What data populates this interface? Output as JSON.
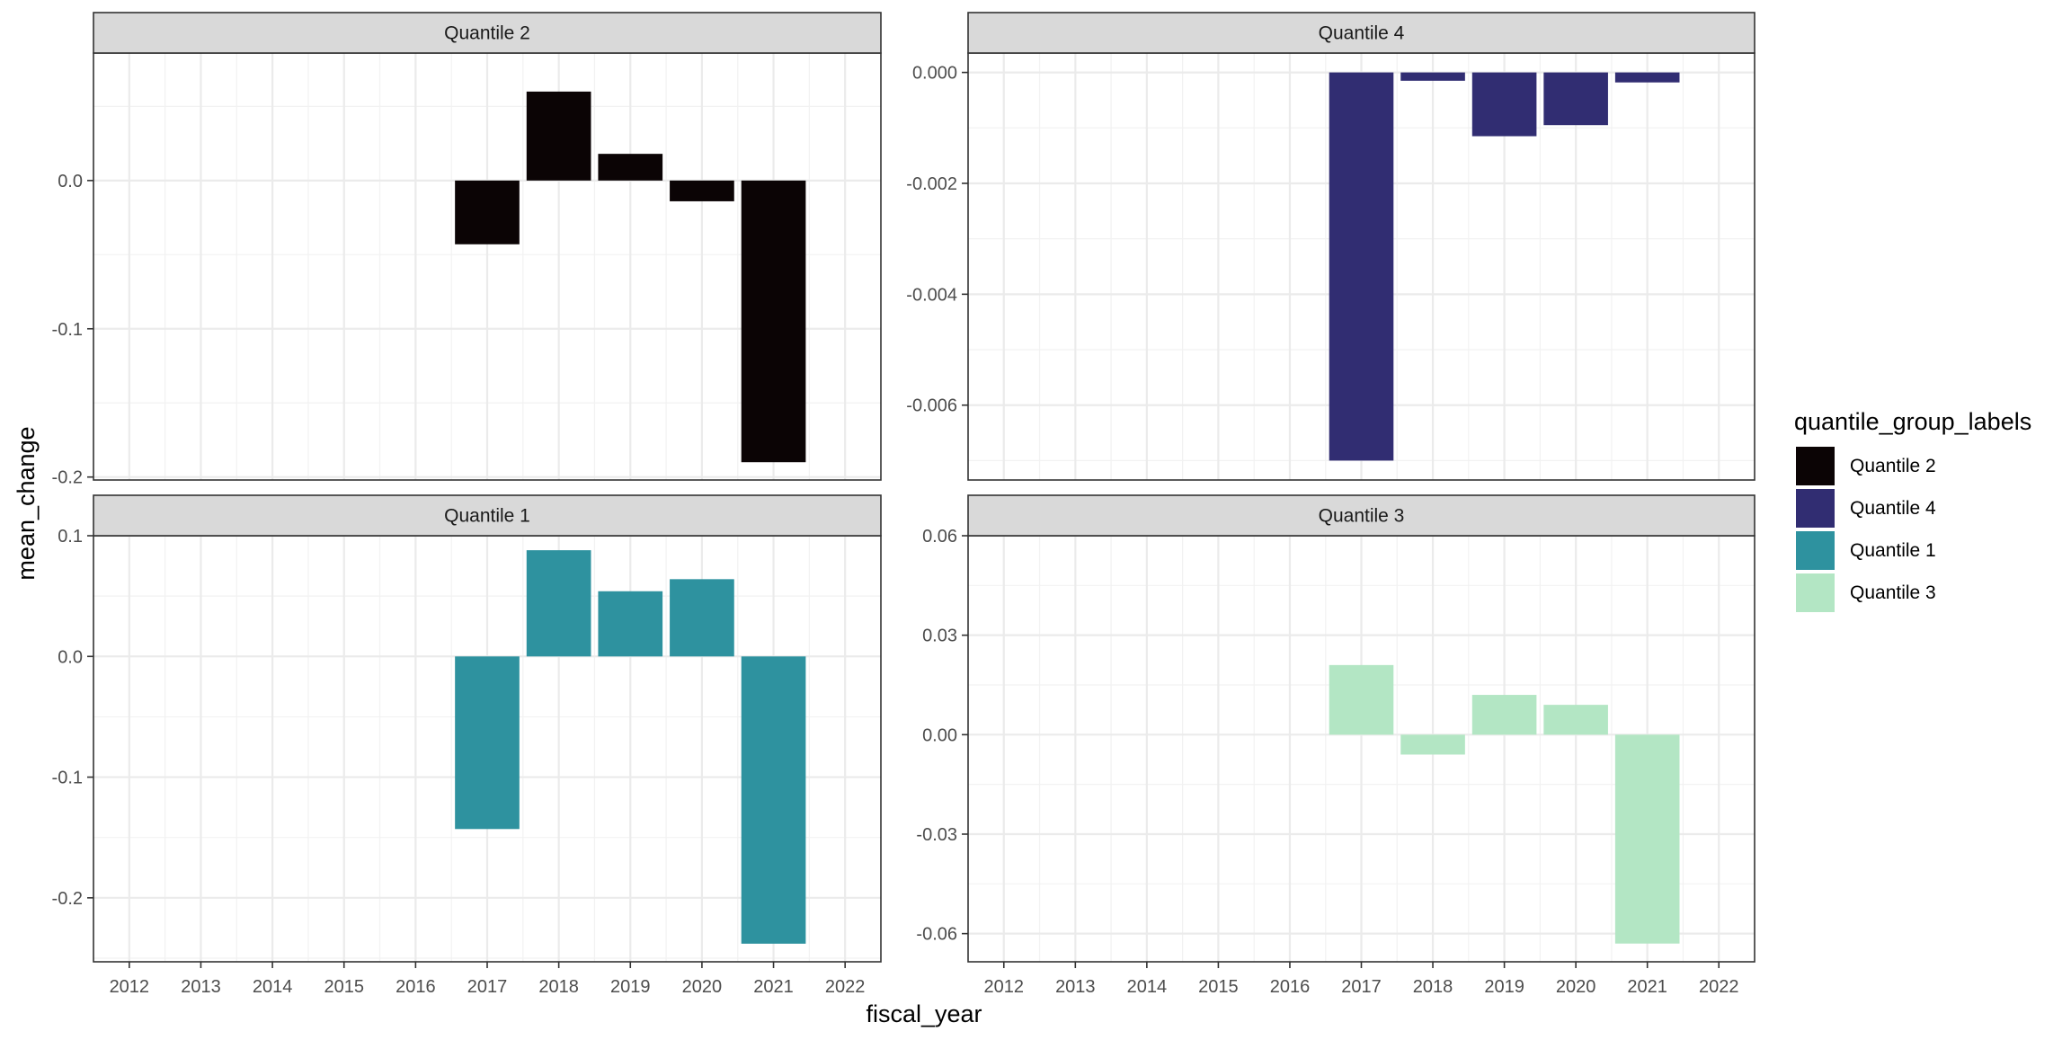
{
  "chart_data": {
    "type": "bar",
    "facet_wrap": true,
    "xlabel": "fiscal_year",
    "ylabel": "mean_change",
    "x_ticks": [
      "2012",
      "2013",
      "2014",
      "2015",
      "2016",
      "2017",
      "2018",
      "2019",
      "2020",
      "2021",
      "2022"
    ],
    "grid": true,
    "scales": "free_y",
    "legend": {
      "title": "quantile_group_labels",
      "position": "right",
      "entries": [
        {
          "label": "Quantile 2",
          "color": "#0b0405"
        },
        {
          "label": "Quantile 4",
          "color": "#312d72"
        },
        {
          "label": "Quantile 1",
          "color": "#2e929f"
        },
        {
          "label": "Quantile 3",
          "color": "#b3e6c4"
        }
      ]
    },
    "panels": [
      {
        "strip": "Quantile 2",
        "color": "#0b0405",
        "ylim": [
          -0.202,
          0.086
        ],
        "y_ticks": [
          0.0,
          -0.1,
          -0.2
        ],
        "y_tick_labels": [
          "0.0",
          "-0.1",
          "-0.2"
        ],
        "x": [
          2017,
          2018,
          2019,
          2020,
          2021
        ],
        "values": [
          -0.043,
          0.06,
          0.018,
          -0.014,
          -0.19
        ]
      },
      {
        "strip": "Quantile 4",
        "color": "#312d72",
        "ylim": [
          -0.00735,
          0.00035
        ],
        "y_ticks": [
          0.0,
          -0.002,
          -0.004,
          -0.006
        ],
        "y_tick_labels": [
          "0.000",
          "-0.002",
          "-0.004",
          "-0.006"
        ],
        "x": [
          2017,
          2018,
          2019,
          2020,
          2021
        ],
        "values": [
          -0.007,
          -0.00015,
          -0.00115,
          -0.00095,
          -0.00018
        ]
      },
      {
        "strip": "Quantile 1",
        "color": "#2e929f",
        "ylim": [
          -0.253,
          0.1
        ],
        "y_ticks": [
          0.1,
          0.0,
          -0.1,
          -0.2
        ],
        "y_tick_labels": [
          "0.1",
          "0.0",
          "-0.1",
          "-0.2"
        ],
        "x": [
          2017,
          2018,
          2019,
          2020,
          2021
        ],
        "values": [
          -0.143,
          0.088,
          0.054,
          0.064,
          -0.238
        ]
      },
      {
        "strip": "Quantile 3",
        "color": "#b3e6c4",
        "ylim": [
          -0.0685,
          0.06
        ],
        "y_ticks": [
          0.06,
          0.03,
          0.0,
          -0.03,
          -0.06
        ],
        "y_tick_labels": [
          "0.06",
          "0.03",
          "0.00",
          "-0.03",
          "-0.06"
        ],
        "x": [
          2017,
          2018,
          2019,
          2020,
          2021
        ],
        "values": [
          0.021,
          -0.006,
          0.012,
          0.009,
          -0.063
        ]
      }
    ]
  }
}
